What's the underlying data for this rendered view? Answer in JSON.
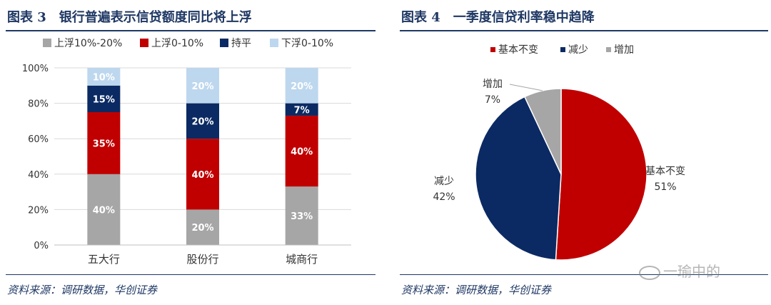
{
  "left": {
    "title": "图表 3　银行普遍表示信贷额度同比将上浮",
    "source": "资料来源：调研数据，华创证券"
  },
  "right": {
    "title": "图表 4　一季度信贷利率稳中趋降",
    "source": "资料来源：调研数据，华创证券"
  },
  "watermark": "一瑜中的",
  "chart_data": [
    {
      "type": "bar",
      "stacked": true,
      "percent": true,
      "categories": [
        "五大行",
        "股份行",
        "城商行"
      ],
      "series": [
        {
          "name": "上浮10%-20%",
          "color": "#a6a6a6",
          "values": [
            40,
            20,
            33
          ],
          "labels": [
            "40%",
            "20%",
            "33%"
          ]
        },
        {
          "name": "上浮0-10%",
          "color": "#c00000",
          "values": [
            35,
            40,
            40
          ],
          "labels": [
            "35%",
            "40%",
            "40%"
          ]
        },
        {
          "name": "持平",
          "color": "#0b2a63",
          "values": [
            15,
            20,
            7
          ],
          "labels": [
            "15%",
            "20%",
            "7%"
          ]
        },
        {
          "name": "下浮0-10%",
          "color": "#bdd7ee",
          "values": [
            10,
            20,
            20
          ],
          "labels": [
            "10%",
            "20%",
            "20%"
          ]
        }
      ],
      "ylim": [
        0,
        100
      ],
      "yticks": [
        "0%",
        "20%",
        "40%",
        "60%",
        "80%",
        "100%"
      ],
      "ytick_values": [
        0,
        20,
        40,
        60,
        80,
        100
      ],
      "grid": true,
      "legend": "top"
    },
    {
      "type": "pie",
      "slices": [
        {
          "name": "基本不变",
          "value": 51,
          "label": "51%",
          "color": "#c00000"
        },
        {
          "name": "减少",
          "value": 42,
          "label": "42%",
          "color": "#0b2a63"
        },
        {
          "name": "增加",
          "value": 7,
          "label": "7%",
          "color": "#a6a6a6"
        }
      ],
      "legend": "top"
    }
  ]
}
